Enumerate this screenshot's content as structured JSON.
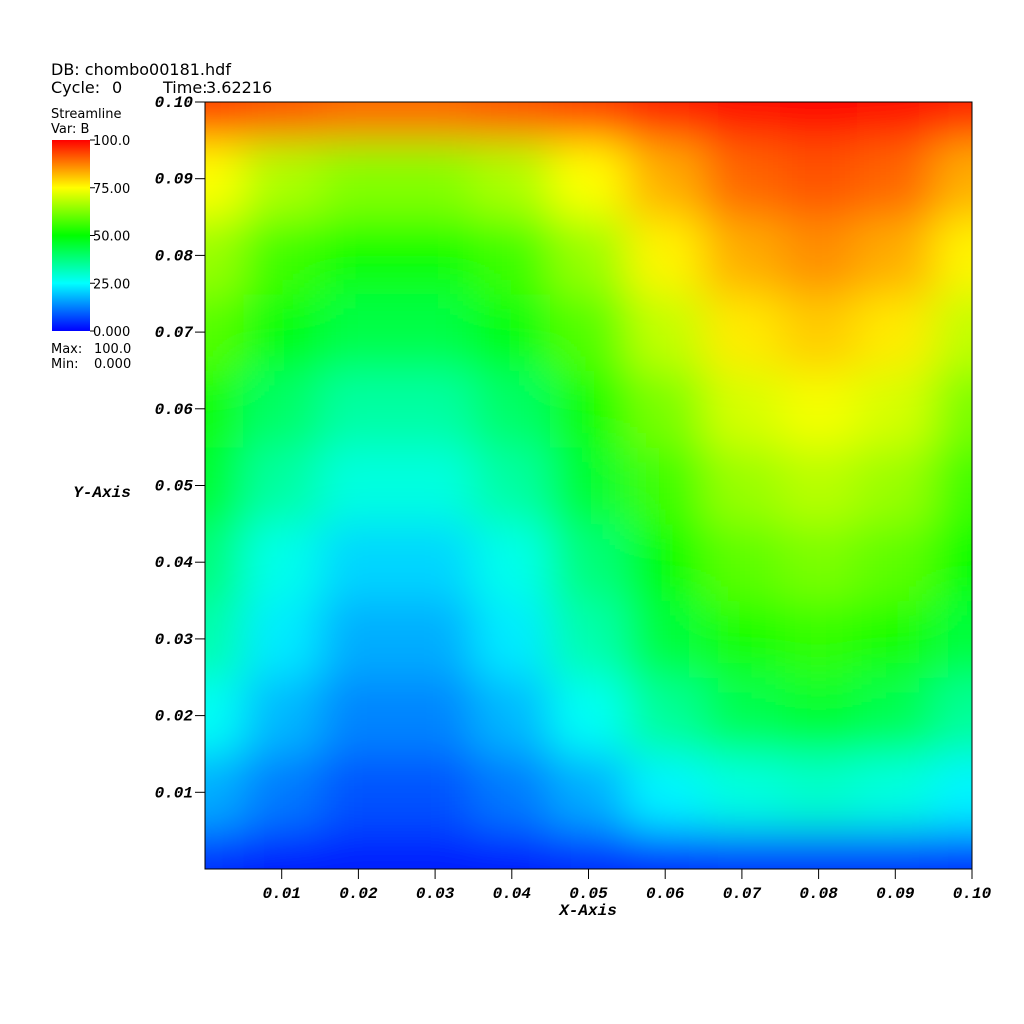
{
  "chart_data": {
    "type": "pseudocolor",
    "db_label": "DB: chombo00181.hdf",
    "cycle_label": "Cycle:",
    "cycle": 0,
    "time_label": "Time:",
    "time": 3.62216,
    "plot_label": "Streamline",
    "var_label": "Var: B",
    "max_label": "Max:",
    "max": {
      "value": 100,
      "label": "100.0"
    },
    "min_label": "Min:",
    "min": {
      "value": 0,
      "label": "0.000"
    },
    "xlabel": "X-Axis",
    "ylabel": "Y-Axis",
    "xlim": [
      0,
      0.1
    ],
    "ylim": [
      0,
      0.1
    ],
    "xticks": [
      0.01,
      0.02,
      0.03,
      0.04,
      0.05,
      0.06,
      0.07,
      0.08,
      0.09,
      {
        "value": 0.1,
        "label": "0.10"
      }
    ],
    "yticks": [
      0.01,
      0.02,
      0.03,
      0.04,
      0.05,
      0.06,
      0.07,
      0.08,
      0.09,
      {
        "value": 0.1,
        "label": "0.10"
      }
    ],
    "clim": [
      0,
      100
    ],
    "colorbar_ticks": [
      {
        "value": 0,
        "label": "0.000"
      },
      {
        "value": 25,
        "label": "25.00"
      },
      {
        "value": 50,
        "label": "50.00"
      },
      {
        "value": 75,
        "label": "75.00"
      },
      {
        "value": 100,
        "label": "100.0"
      }
    ],
    "colormap": [
      "#0000ff",
      "#00ffff",
      "#00ff00",
      "#ffff00",
      "#ff0000"
    ],
    "x": [
      0,
      0.01,
      0.02,
      0.03,
      0.04,
      0.05,
      0.06,
      0.07,
      0.08,
      0.09,
      0.1
    ],
    "y": [
      0,
      0.01,
      0.02,
      0.03,
      0.04,
      0.05,
      0.06,
      0.07,
      0.08,
      0.09,
      0.1
    ],
    "z": [
      [
        4,
        17,
        26,
        33,
        38,
        45,
        51,
        58,
        65,
        75,
        94
      ],
      [
        3,
        12,
        18,
        23,
        27,
        34,
        40,
        49,
        56,
        67,
        92
      ],
      [
        3,
        8,
        13,
        17,
        21,
        28,
        34,
        43,
        51,
        63,
        90
      ],
      [
        3,
        8,
        13,
        17,
        21,
        28,
        34,
        43,
        51,
        63,
        90
      ],
      [
        3,
        12,
        18,
        23,
        27,
        34,
        40,
        49,
        56,
        67,
        92
      ],
      [
        4,
        17,
        26,
        33,
        38,
        45,
        51,
        58,
        65,
        75,
        94
      ],
      [
        4,
        24,
        35,
        44,
        50,
        56,
        62,
        69,
        76,
        83,
        97
      ],
      [
        5,
        28,
        42,
        52,
        59,
        65,
        71,
        77,
        83,
        90,
        99
      ],
      [
        5,
        30,
        45,
        55,
        62,
        68,
        74,
        80,
        86,
        92,
        100
      ],
      [
        5,
        28,
        42,
        52,
        59,
        65,
        71,
        77,
        83,
        90,
        99
      ],
      [
        4,
        24,
        35,
        44,
        50,
        56,
        62,
        69,
        76,
        83,
        97
      ]
    ]
  }
}
